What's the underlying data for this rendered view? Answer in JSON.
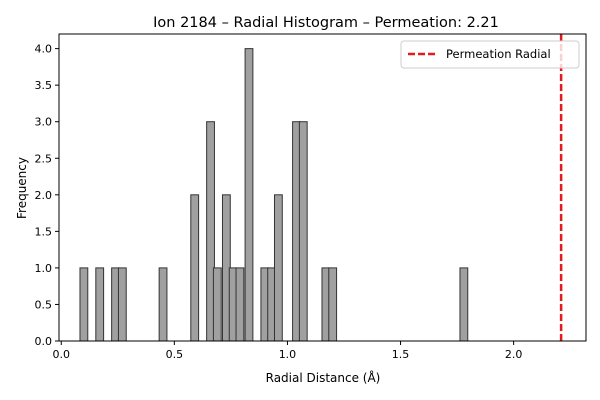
{
  "chart_data": {
    "type": "bar",
    "subtype": "histogram",
    "title": "Ion 2184 – Radial Histogram – Permeation: 2.21",
    "xlabel": "Radial Distance (Å)",
    "ylabel": "Frequency",
    "xlim": [
      -0.01,
      2.32
    ],
    "ylim": [
      0,
      4.2
    ],
    "xticks": [
      {
        "value": 0.0,
        "label": "0.0"
      },
      {
        "value": 0.5,
        "label": "0.5"
      },
      {
        "value": 1.0,
        "label": "1.0"
      },
      {
        "value": 1.5,
        "label": "1.5"
      },
      {
        "value": 2.0,
        "label": "2.0"
      }
    ],
    "yticks": [
      {
        "value": 0.0,
        "label": "0.0"
      },
      {
        "value": 0.5,
        "label": "0.5"
      },
      {
        "value": 1.0,
        "label": "1.0"
      },
      {
        "value": 1.5,
        "label": "1.5"
      },
      {
        "value": 2.0,
        "label": "2.0"
      },
      {
        "value": 2.5,
        "label": "2.5"
      },
      {
        "value": 3.0,
        "label": "3.0"
      },
      {
        "value": 3.5,
        "label": "3.5"
      },
      {
        "value": 4.0,
        "label": "4.0"
      }
    ],
    "bin_width": 0.0345,
    "bins": [
      {
        "x": 0.1,
        "count": 1
      },
      {
        "x": 0.17,
        "count": 1
      },
      {
        "x": 0.24,
        "count": 1
      },
      {
        "x": 0.27,
        "count": 1
      },
      {
        "x": 0.45,
        "count": 1
      },
      {
        "x": 0.59,
        "count": 2
      },
      {
        "x": 0.66,
        "count": 3
      },
      {
        "x": 0.69,
        "count": 1
      },
      {
        "x": 0.73,
        "count": 2
      },
      {
        "x": 0.76,
        "count": 1
      },
      {
        "x": 0.79,
        "count": 1
      },
      {
        "x": 0.83,
        "count": 4
      },
      {
        "x": 0.9,
        "count": 1
      },
      {
        "x": 0.93,
        "count": 1
      },
      {
        "x": 0.96,
        "count": 2
      },
      {
        "x": 1.04,
        "count": 3
      },
      {
        "x": 1.07,
        "count": 3
      },
      {
        "x": 1.17,
        "count": 1
      },
      {
        "x": 1.2,
        "count": 1
      },
      {
        "x": 1.78,
        "count": 1
      }
    ],
    "bar_color": "#a0a0a0",
    "bar_edge_color": "#333333",
    "reference_lines": [
      {
        "name": "Permeation Radial",
        "x": 2.21,
        "color": "#e41a1c",
        "style": "dashed"
      }
    ],
    "legend": {
      "position": "top-right",
      "entries": [
        "Permeation Radial"
      ]
    },
    "grid": false
  }
}
